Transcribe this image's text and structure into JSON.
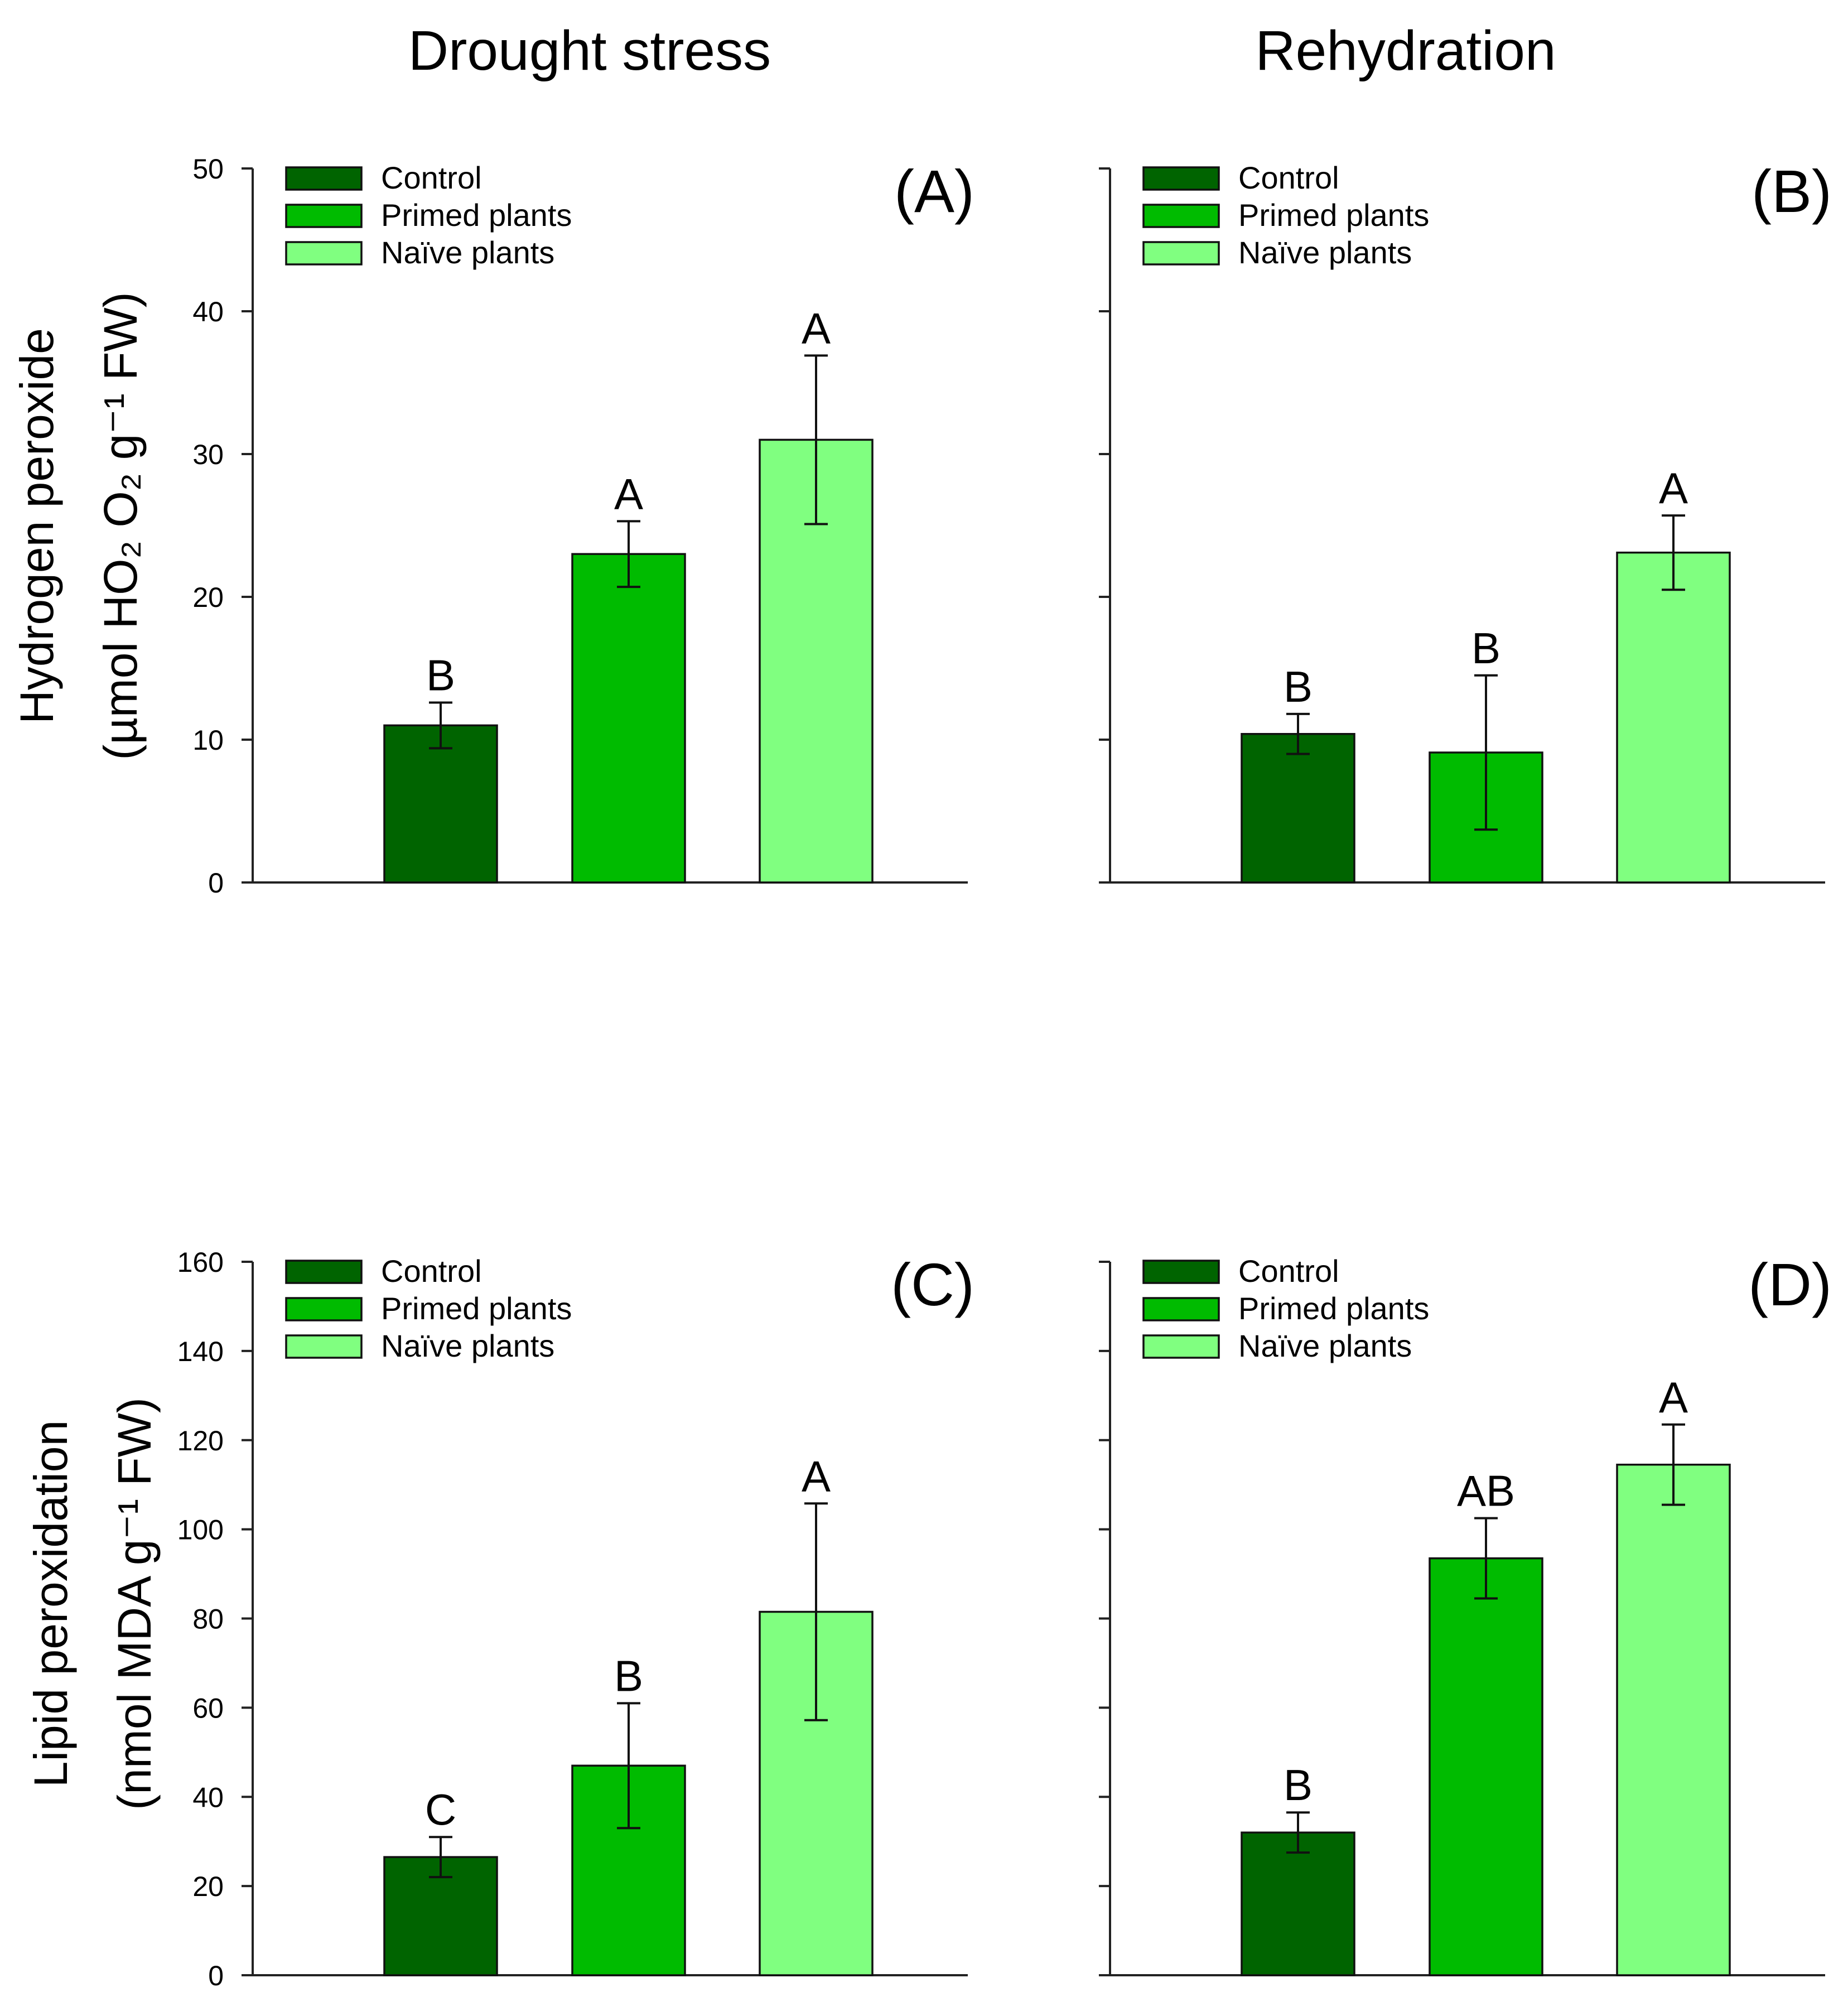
{
  "column_titles": [
    "Drought stress",
    "Rehydration"
  ],
  "y_axis_labels": [
    {
      "line1": "Hydrogen peroxide",
      "line2": "(µmol HO₂ O₂ g⁻¹ FW)"
    },
    {
      "line1": "Lipid peroxidation",
      "line2": "(nmol MDA g⁻¹ FW)"
    }
  ],
  "legend": [
    {
      "label": "Control",
      "color": "#006400"
    },
    {
      "label": "Primed plants",
      "color": "#00BB00"
    },
    {
      "label": "Naïve plants",
      "color": "#80FF80"
    }
  ],
  "chart_data": [
    {
      "type": "bar",
      "panel": "(A)",
      "column": "Drought stress",
      "ylabel": "Hydrogen peroxide (µmol HO₂ O₂ g⁻¹ FW)",
      "ylim": [
        0,
        50
      ],
      "yticks": [
        0,
        10,
        20,
        30,
        40,
        50
      ],
      "show_tick_labels": true,
      "categories": [
        "Control",
        "Primed plants",
        "Naïve plants"
      ],
      "values": [
        11,
        23,
        31
      ],
      "errors": [
        1.6,
        2.3,
        5.9
      ],
      "letters": [
        "B",
        "A",
        "A"
      ]
    },
    {
      "type": "bar",
      "panel": "(B)",
      "column": "Rehydration",
      "ylabel": "Hydrogen peroxide (µmol HO₂ O₂ g⁻¹ FW)",
      "ylim": [
        0,
        50
      ],
      "yticks": [
        0,
        10,
        20,
        30,
        40,
        50
      ],
      "show_tick_labels": false,
      "categories": [
        "Control",
        "Primed plants",
        "Naïve plants"
      ],
      "values": [
        10.4,
        9.1,
        23.1
      ],
      "errors": [
        1.4,
        5.4,
        2.6
      ],
      "letters": [
        "B",
        "B",
        "A"
      ]
    },
    {
      "type": "bar",
      "panel": "(C)",
      "column": "Drought stress",
      "ylabel": "Lipid peroxidation (nmol MDA g⁻¹ FW)",
      "ylim": [
        0,
        160
      ],
      "yticks": [
        0,
        20,
        40,
        60,
        80,
        100,
        120,
        140,
        160
      ],
      "show_tick_labels": true,
      "categories": [
        "Control",
        "Primed plants",
        "Naïve plants"
      ],
      "values": [
        26.5,
        47,
        81.5
      ],
      "errors": [
        4.5,
        14,
        24.3
      ],
      "letters": [
        "C",
        "B",
        "A"
      ]
    },
    {
      "type": "bar",
      "panel": "(D)",
      "column": "Rehydration",
      "ylabel": "Lipid peroxidation (nmol MDA g⁻¹ FW)",
      "ylim": [
        0,
        160
      ],
      "yticks": [
        0,
        20,
        40,
        60,
        80,
        100,
        120,
        140,
        160
      ],
      "show_tick_labels": false,
      "categories": [
        "Control",
        "Primed plants",
        "Naïve plants"
      ],
      "values": [
        32,
        93.5,
        114.5
      ],
      "errors": [
        4.5,
        9,
        9
      ],
      "letters": [
        "B",
        "AB",
        "A"
      ]
    }
  ]
}
